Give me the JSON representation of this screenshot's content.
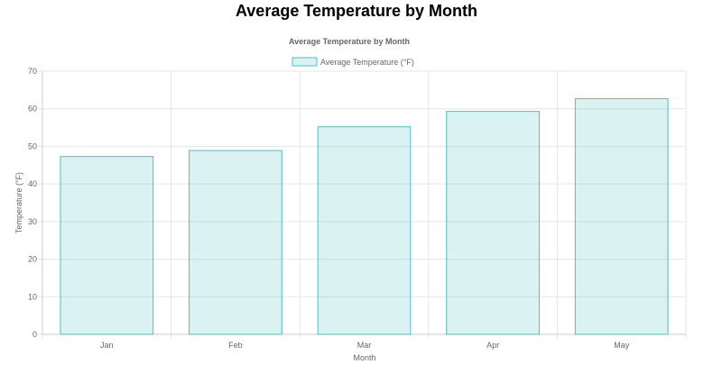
{
  "page": {
    "title": "Average Temperature by Month"
  },
  "chart_data": {
    "type": "bar",
    "title": "Average Temperature by Month",
    "categories": [
      "Jan",
      "Feb",
      "Mar",
      "Apr",
      "May"
    ],
    "series": [
      {
        "name": "Average Temperature (°F)",
        "values": [
          47.3,
          48.9,
          55.2,
          59.3,
          62.7
        ]
      }
    ],
    "xlabel": "Month",
    "ylabel": "Temperature (°F)",
    "ylim": [
      0,
      70
    ],
    "yticks": [
      0,
      10,
      20,
      30,
      40,
      50,
      60,
      70
    ],
    "grid": true,
    "legend": "top-center",
    "colors": {
      "fill": "rgba(75,192,192,0.2)",
      "border": "#4bc0c0"
    }
  }
}
